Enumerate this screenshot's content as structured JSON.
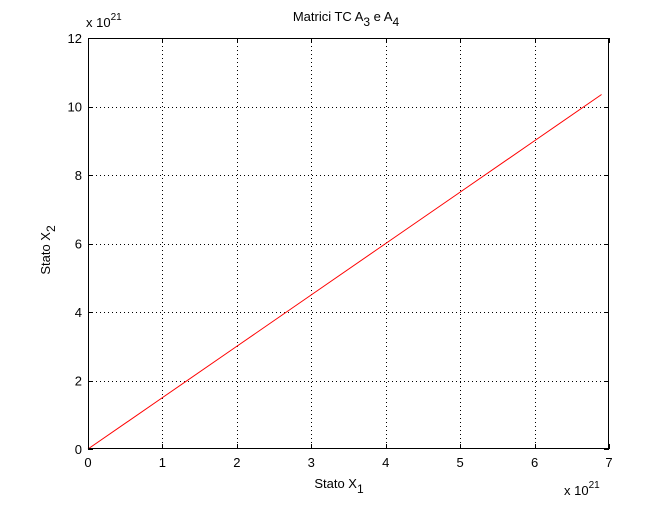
{
  "chart_data": {
    "type": "line",
    "title": {
      "text": "Matrici TC A",
      "sub1": "3",
      "mid": " e A",
      "sub2": "4"
    },
    "xlabel": {
      "text": "Stato X",
      "sub": "1"
    },
    "ylabel": {
      "text": "Stato X",
      "sub": "2"
    },
    "x_multiplier": {
      "text": "x 10",
      "exp": "21"
    },
    "y_multiplier": {
      "text": "x 10",
      "exp": "21"
    },
    "xlim": [
      0,
      7
    ],
    "ylim": [
      0,
      12
    ],
    "xticks": [
      0,
      1,
      2,
      3,
      4,
      5,
      6,
      7
    ],
    "yticks": [
      0,
      2,
      4,
      6,
      8,
      10,
      12
    ],
    "xtick_labels": [
      "0",
      "1",
      "2",
      "3",
      "4",
      "5",
      "6",
      "7"
    ],
    "ytick_labels": [
      "0",
      "2",
      "4",
      "6",
      "8",
      "10",
      "12"
    ],
    "grid": true,
    "series": [
      {
        "color": "#ff0000",
        "x": [
          0,
          1,
          2,
          3,
          4,
          5,
          6,
          6.9
        ],
        "y": [
          0,
          1.5,
          3,
          4.5,
          6,
          7.5,
          9,
          10.35
        ]
      }
    ]
  }
}
